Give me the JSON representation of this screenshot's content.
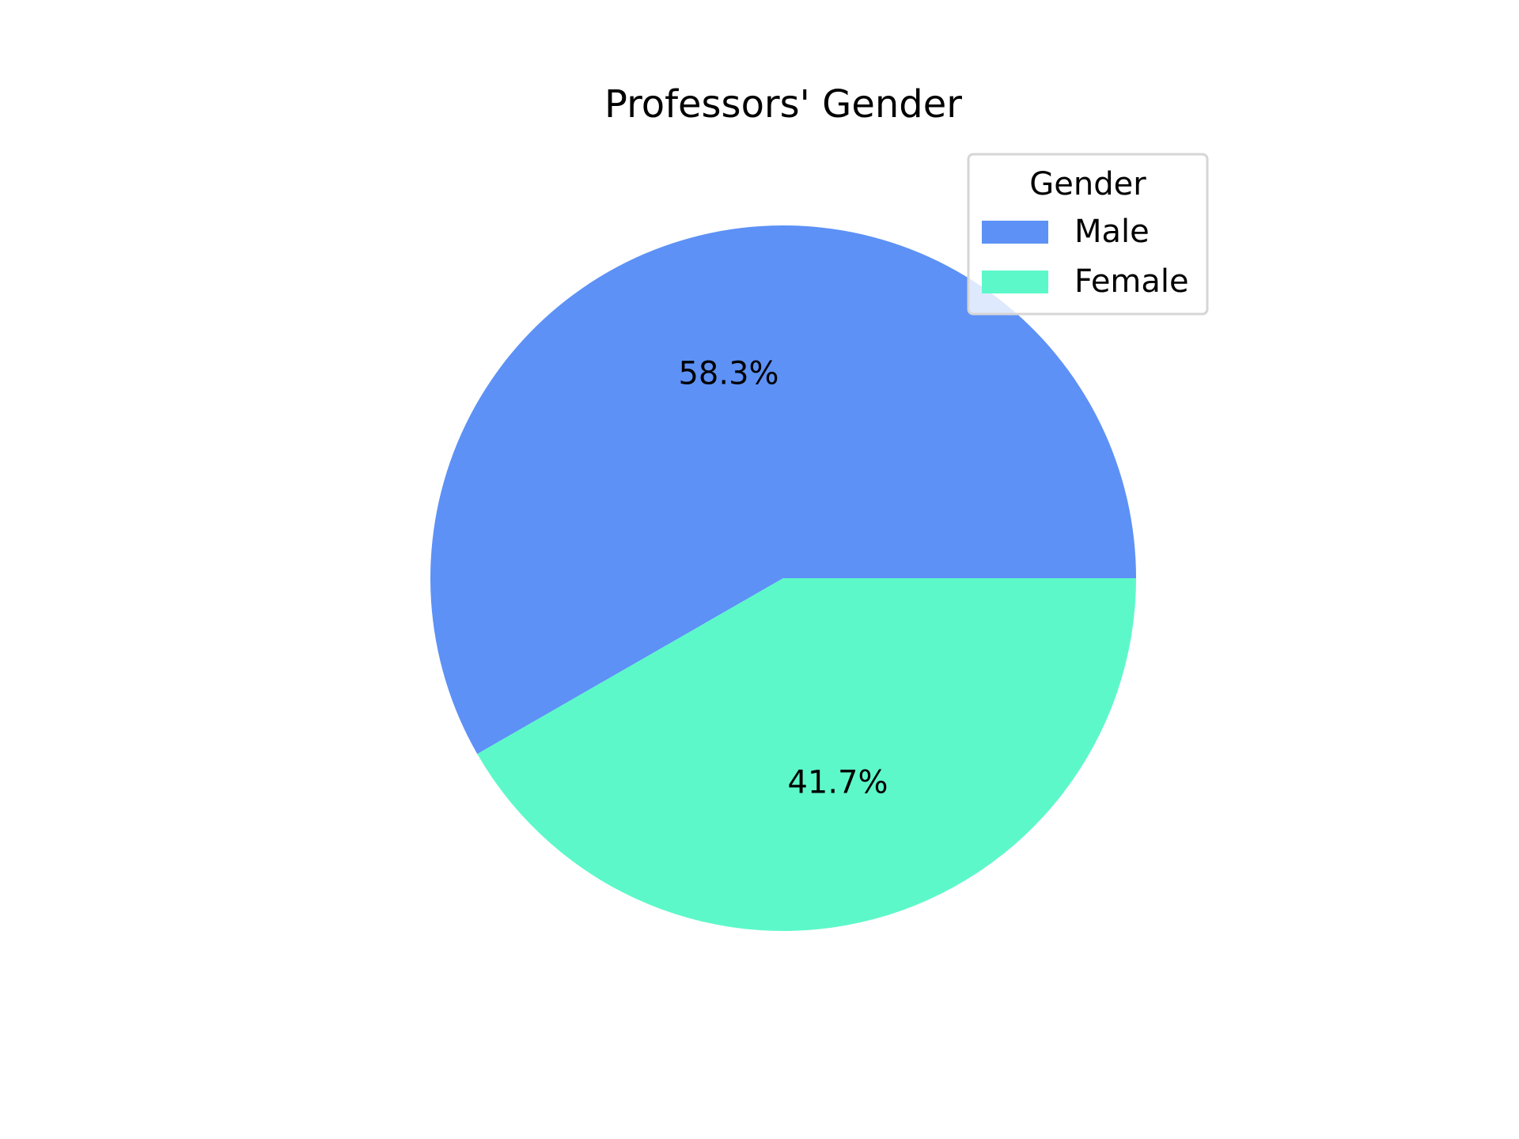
{
  "chart_data": {
    "type": "pie",
    "title": "Professors' Gender",
    "legend_title": "Gender",
    "legend_position": "top-right",
    "categories": [
      "Male",
      "Female"
    ],
    "values": [
      58.3,
      41.7
    ],
    "value_labels": [
      "58.3%",
      "41.7%"
    ],
    "colors": [
      "#5d91f6",
      "#5df8c9"
    ],
    "start_angle_deg": 0,
    "direction": "counterclockwise"
  }
}
